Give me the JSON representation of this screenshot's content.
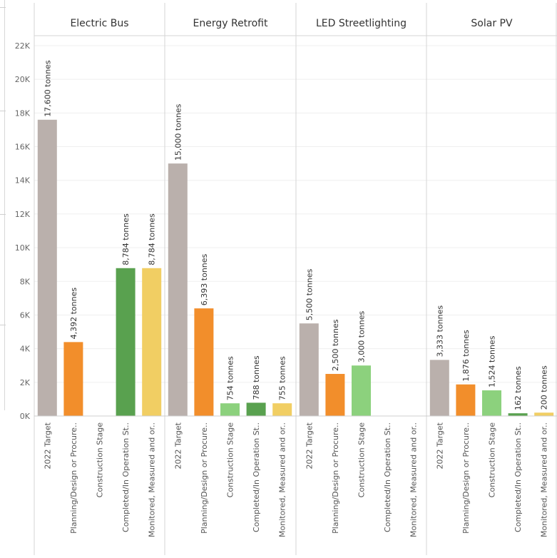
{
  "chart_data": {
    "type": "bar",
    "panels": [
      "Electric Bus",
      "Energy Retrofit",
      "LED Streetlighting",
      "Solar PV"
    ],
    "categories": [
      "2022 Target",
      "Planning/Design or Procure..",
      "Construction Stage",
      "Completed/In Operation St..",
      "Monitored, Measured and or.."
    ],
    "values": [
      [
        17600,
        4392,
        null,
        8784,
        8784
      ],
      [
        15000,
        6393,
        754,
        788,
        755
      ],
      [
        5500,
        2500,
        3000,
        null,
        null
      ],
      [
        3333,
        1876,
        1524,
        162,
        200
      ]
    ],
    "data_labels": [
      [
        "17,600 tonnes",
        "4,392 tonnes",
        "",
        "8,784 tonnes",
        "8,784 tonnes"
      ],
      [
        "15,000 tonnes",
        "6,393 tonnes",
        "754 tonnes",
        "788 tonnes",
        "755 tonnes"
      ],
      [
        "5,500 tonnes",
        "2,500 tonnes",
        "3,000 tonnes",
        "",
        ""
      ],
      [
        "3,333 tonnes",
        "1,876 tonnes",
        "1,524 tonnes",
        "162 tonnes",
        "200 tonnes"
      ]
    ],
    "category_colors": [
      "#bab0ac",
      "#f28e2b",
      "#8cd17d",
      "#59a14f",
      "#f1ce63"
    ],
    "y_ticks": [
      {
        "value": 0,
        "label": "0K"
      },
      {
        "value": 2000,
        "label": "2K"
      },
      {
        "value": 4000,
        "label": "4K"
      },
      {
        "value": 6000,
        "label": "6K"
      },
      {
        "value": 8000,
        "label": "8K"
      },
      {
        "value": 10000,
        "label": "10K"
      },
      {
        "value": 12000,
        "label": "12K"
      },
      {
        "value": 14000,
        "label": "14K"
      },
      {
        "value": 16000,
        "label": "16K"
      },
      {
        "value": 18000,
        "label": "18K"
      },
      {
        "value": 20000,
        "label": "20K"
      },
      {
        "value": 22000,
        "label": "22K"
      }
    ],
    "ylim": [
      0,
      22500
    ],
    "grid": true
  }
}
